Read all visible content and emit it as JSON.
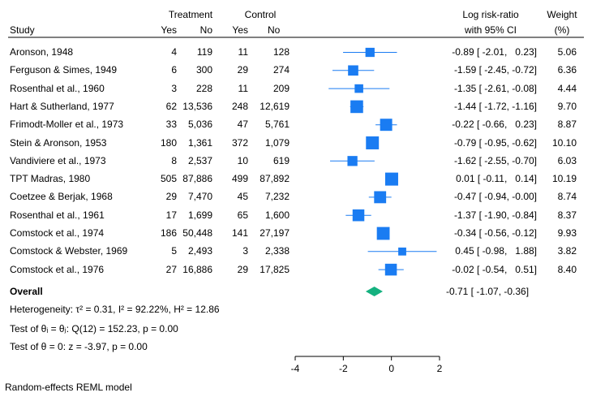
{
  "header": {
    "treatment": "Treatment",
    "control": "Control",
    "study": "Study",
    "yes1": "Yes",
    "no1": "No",
    "yes2": "Yes",
    "no2": "No",
    "effect1": "Log risk-ratio",
    "effect2": "with 95% CI",
    "weight1": "Weight",
    "weight2": "(%)"
  },
  "studies": [
    {
      "name": "Aronson, 1948",
      "t_yes": "4",
      "t_no": "119",
      "c_yes": "11",
      "c_no": "128",
      "ci_text": "-0.89 [ -2.01,   0.23]",
      "weight": "5.06"
    },
    {
      "name": "Ferguson & Simes, 1949",
      "t_yes": "6",
      "t_no": "300",
      "c_yes": "29",
      "c_no": "274",
      "ci_text": "-1.59 [ -2.45, -0.72]",
      "weight": "6.36"
    },
    {
      "name": "Rosenthal et al., 1960",
      "t_yes": "3",
      "t_no": "228",
      "c_yes": "11",
      "c_no": "209",
      "ci_text": "-1.35 [ -2.61, -0.08]",
      "weight": "4.44"
    },
    {
      "name": "Hart & Sutherland, 1977",
      "t_yes": "62",
      "t_no": "13,536",
      "c_yes": "248",
      "c_no": "12,619",
      "ci_text": "-1.44 [ -1.72, -1.16]",
      "weight": "9.70"
    },
    {
      "name": "Frimodt-Moller et al., 1973",
      "t_yes": "33",
      "t_no": "5,036",
      "c_yes": "47",
      "c_no": "5,761",
      "ci_text": "-0.22 [ -0.66,   0.23]",
      "weight": "8.87"
    },
    {
      "name": "Stein & Aronson, 1953",
      "t_yes": "180",
      "t_no": "1,361",
      "c_yes": "372",
      "c_no": "1,079",
      "ci_text": "-0.79 [ -0.95, -0.62]",
      "weight": "10.10"
    },
    {
      "name": "Vandiviere et al., 1973",
      "t_yes": "8",
      "t_no": "2,537",
      "c_yes": "10",
      "c_no": "619",
      "ci_text": "-1.62 [ -2.55, -0.70]",
      "weight": "6.03"
    },
    {
      "name": "TPT Madras, 1980",
      "t_yes": "505",
      "t_no": "87,886",
      "c_yes": "499",
      "c_no": "87,892",
      "ci_text": "0.01 [ -0.11,   0.14]",
      "weight": "10.19"
    },
    {
      "name": "Coetzee & Berjak, 1968",
      "t_yes": "29",
      "t_no": "7,470",
      "c_yes": "45",
      "c_no": "7,232",
      "ci_text": "-0.47 [ -0.94, -0.00]",
      "weight": "8.74"
    },
    {
      "name": "Rosenthal et al., 1961",
      "t_yes": "17",
      "t_no": "1,699",
      "c_yes": "65",
      "c_no": "1,600",
      "ci_text": "-1.37 [ -1.90, -0.84]",
      "weight": "8.37"
    },
    {
      "name": "Comstock et al., 1974",
      "t_yes": "186",
      "t_no": "50,448",
      "c_yes": "141",
      "c_no": "27,197",
      "ci_text": "-0.34 [ -0.56, -0.12]",
      "weight": "9.93"
    },
    {
      "name": "Comstock & Webster, 1969",
      "t_yes": "5",
      "t_no": "2,493",
      "c_yes": "3",
      "c_no": "2,338",
      "ci_text": "0.45 [ -0.98,   1.88]",
      "weight": "3.82"
    },
    {
      "name": "Comstock et al., 1976",
      "t_yes": "27",
      "t_no": "16,886",
      "c_yes": "29",
      "c_no": "17,825",
      "ci_text": "-0.02 [ -0.54,   0.51]",
      "weight": "8.40"
    }
  ],
  "overall": {
    "label": "Overall",
    "ci_text": "-0.71 [ -1.07, -0.36]"
  },
  "stats": {
    "heterogeneity": "Heterogeneity: τ² = 0.31, I² = 92.22%, H² = 12.86",
    "test_equal": "Test of θᵢ = θⱼ: Q(12) = 152.23, p = 0.00",
    "test_zero": "Test of θ = 0: z = -3.97, p = 0.00"
  },
  "footnote": "Random-effects REML model",
  "colors": {
    "marker": "#1a7cf2",
    "overall": "#14b17f",
    "axis": "#000000"
  },
  "chart_data": {
    "type": "forest",
    "xlim": [
      -4,
      2
    ],
    "ticks": [
      -4,
      -2,
      0,
      2
    ],
    "estimates": [
      {
        "est": -0.89,
        "lo": -2.01,
        "hi": 0.23,
        "w": 5.06
      },
      {
        "est": -1.59,
        "lo": -2.45,
        "hi": -0.72,
        "w": 6.36
      },
      {
        "est": -1.35,
        "lo": -2.61,
        "hi": -0.08,
        "w": 4.44
      },
      {
        "est": -1.44,
        "lo": -1.72,
        "hi": -1.16,
        "w": 9.7
      },
      {
        "est": -0.22,
        "lo": -0.66,
        "hi": 0.23,
        "w": 8.87
      },
      {
        "est": -0.79,
        "lo": -0.95,
        "hi": -0.62,
        "w": 10.1
      },
      {
        "est": -1.62,
        "lo": -2.55,
        "hi": -0.7,
        "w": 6.03
      },
      {
        "est": 0.01,
        "lo": -0.11,
        "hi": 0.14,
        "w": 10.19
      },
      {
        "est": -0.47,
        "lo": -0.94,
        "hi": -0.0,
        "w": 8.74
      },
      {
        "est": -1.37,
        "lo": -1.9,
        "hi": -0.84,
        "w": 8.37
      },
      {
        "est": -0.34,
        "lo": -0.56,
        "hi": -0.12,
        "w": 9.93
      },
      {
        "est": 0.45,
        "lo": -0.98,
        "hi": 1.88,
        "w": 3.82
      },
      {
        "est": -0.02,
        "lo": -0.54,
        "hi": 0.51,
        "w": 8.4
      }
    ],
    "overall": {
      "est": -0.71,
      "lo": -1.07,
      "hi": -0.36
    }
  }
}
